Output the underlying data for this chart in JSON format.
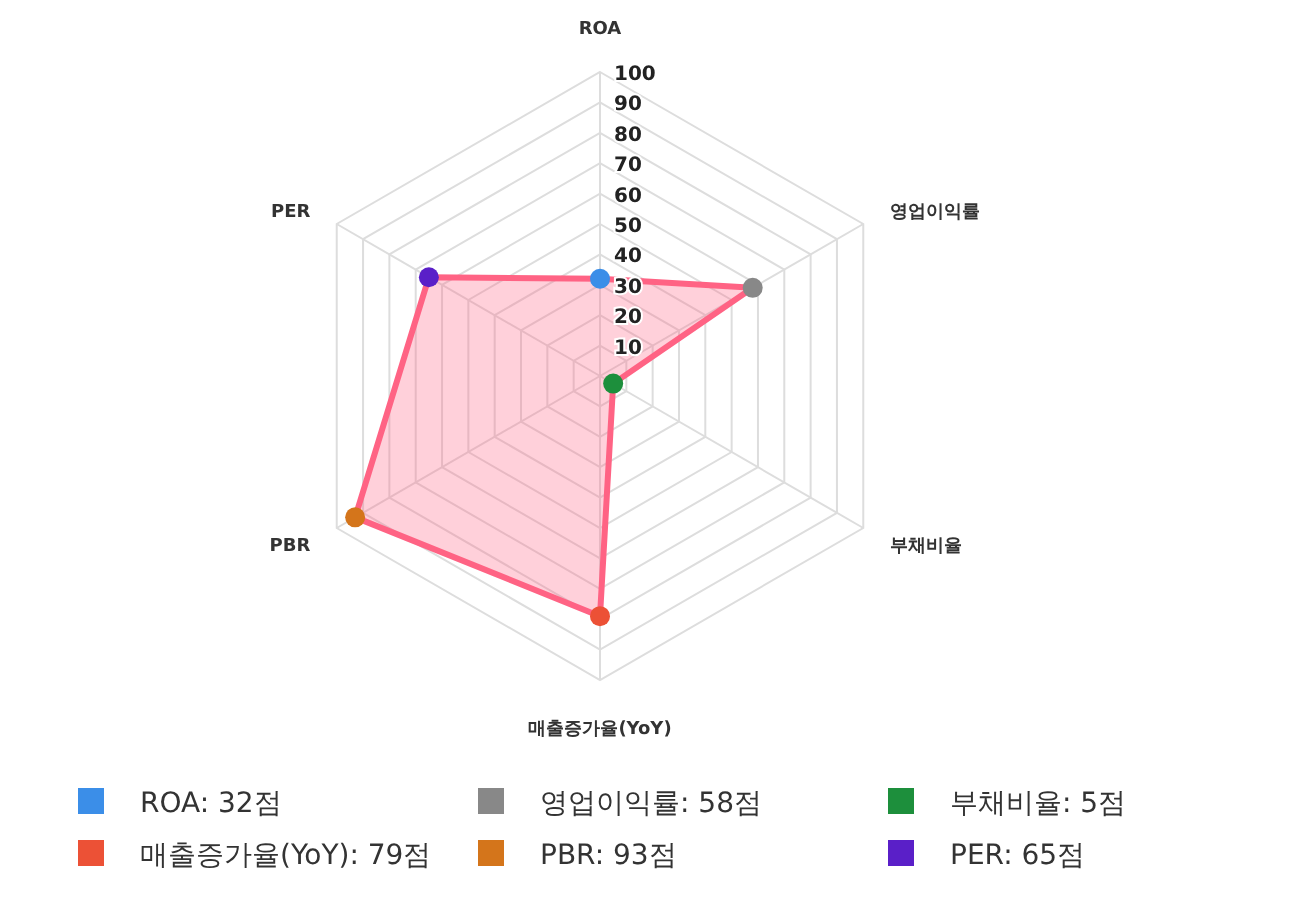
{
  "chart_data": {
    "type": "radar",
    "categories": [
      "ROA",
      "영업이익률",
      "부채비율",
      "매출증가율(YoY)",
      "PBR",
      "PER"
    ],
    "series": [
      {
        "color": "#ff6384",
        "values": [
          32,
          58,
          5,
          79,
          93,
          65
        ],
        "colors": [
          "#3b8ee8",
          "#888888",
          "#1d8f3c",
          "#ec5136",
          "#d4751b",
          "#5a1fc8"
        ]
      }
    ],
    "ylim": [
      0,
      100
    ],
    "yticks": [
      10,
      20,
      30,
      40,
      50,
      60,
      70,
      80,
      90,
      100
    ],
    "grid": true,
    "marker": "circle",
    "annotations": [
      "ROA: 32점",
      "영업이익률: 58점",
      "부채비율: 5점",
      "매출증가율(YoY): 79점",
      "PBR: 93점",
      "PER: 65점"
    ]
  }
}
